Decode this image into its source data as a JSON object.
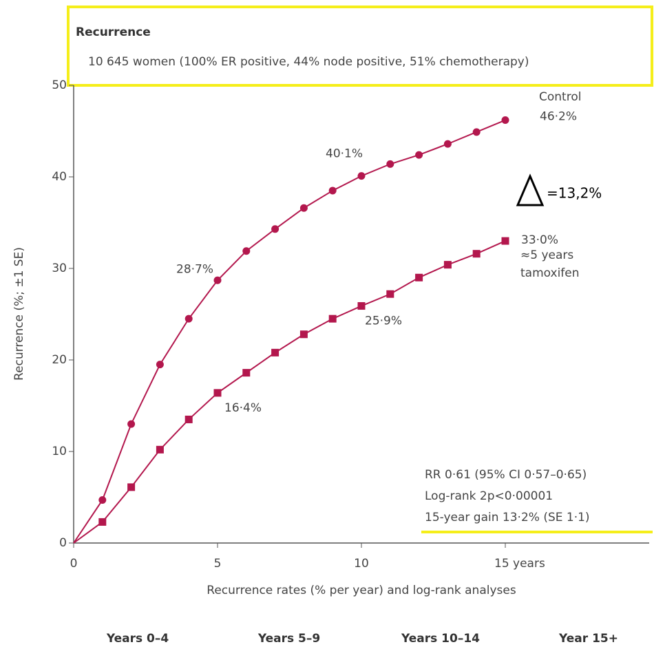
{
  "chart_data": {
    "type": "line",
    "title": "Recurrence",
    "subtitle": "10 645 women (100% ER positive, 44% node positive, 51% chemotherapy)",
    "y_label": "Recurrence (%; ±1 SE)",
    "x_label": "Recurrence rates (% per year) and log-rank analyses",
    "x": [
      0,
      1,
      2,
      3,
      4,
      5,
      6,
      7,
      8,
      9,
      10,
      11,
      12,
      13,
      14,
      15
    ],
    "series": [
      {
        "name": "Control",
        "color": "#b3174d",
        "marker": "circle",
        "values": [
          0,
          4.7,
          13,
          19.5,
          24.5,
          28.7,
          31.9,
          34.3,
          36.6,
          38.5,
          40.1,
          41.4,
          42.4,
          43.6,
          44.9,
          46.2
        ],
        "value_labels": [
          null,
          null,
          null,
          null,
          null,
          "28·7%",
          null,
          null,
          null,
          null,
          "40·1%",
          null,
          null,
          null,
          null,
          "46·2%"
        ]
      },
      {
        "name": "≈5 years tamoxifen",
        "color": "#b3174d",
        "marker": "square",
        "values": [
          0,
          2.3,
          6.1,
          10.2,
          13.5,
          16.4,
          18.6,
          20.8,
          22.8,
          24.5,
          25.9,
          27.2,
          29.0,
          30.4,
          31.6,
          33.0
        ],
        "value_labels": [
          null,
          null,
          null,
          null,
          null,
          "16·4%",
          null,
          null,
          null,
          null,
          "25·9%",
          null,
          null,
          null,
          null,
          "33·0%"
        ]
      }
    ],
    "xlim": [
      0,
      20
    ],
    "xticks": [
      0,
      5,
      10,
      {
        "value": 15,
        "label": "15 years"
      }
    ],
    "ylim": [
      0,
      50
    ],
    "yticks": [
      0,
      10,
      20,
      30,
      40,
      50
    ],
    "delta_note": "=13,2%",
    "stats": [
      "RR 0·61 (95% CI 0·57–0·65)",
      "Log-rank 2p<0·00001",
      "15-year gain 13·2% (SE 1·1)"
    ],
    "periods": [
      "Years 0–4",
      "Years 5–9",
      "Years 10–14",
      "Year 15+"
    ]
  }
}
